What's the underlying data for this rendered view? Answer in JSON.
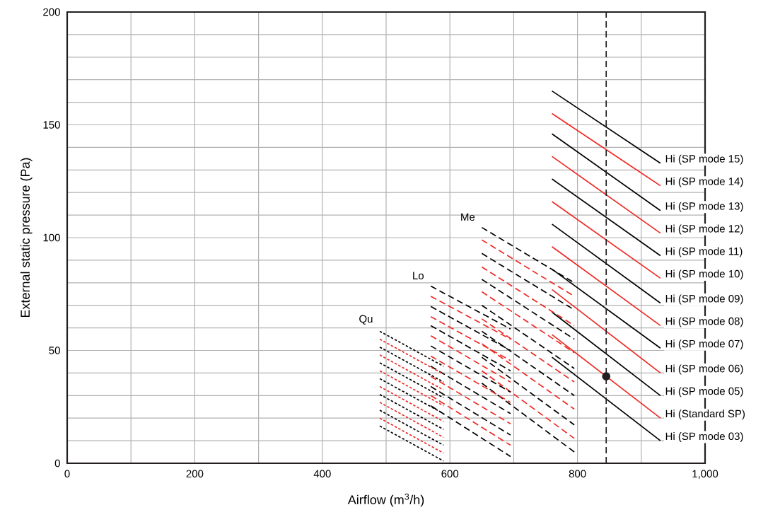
{
  "chart_data": {
    "type": "line",
    "xlabel": "Airflow (m$^{3}$/h)",
    "ylabel": "External static pressure (Pa)",
    "xlim": [
      0,
      1000
    ],
    "ylim": [
      0,
      200
    ],
    "xticks": [
      0,
      {
        "value": 100,
        "label": null
      },
      200,
      {
        "value": 300,
        "label": null
      },
      400,
      {
        "value": 500,
        "label": null
      },
      600,
      {
        "value": 700,
        "label": null
      },
      800,
      {
        "value": 900,
        "label": null
      },
      {
        "value": 1000,
        "label": "1,000"
      }
    ],
    "yticks": [
      0,
      {
        "value": 10,
        "label": null
      },
      {
        "value": 20,
        "label": null
      },
      {
        "value": 30,
        "label": null
      },
      {
        "value": 40,
        "label": null
      },
      50,
      {
        "value": 60,
        "label": null
      },
      {
        "value": 70,
        "label": null
      },
      {
        "value": 80,
        "label": null
      },
      {
        "value": 90,
        "label": null
      },
      100,
      {
        "value": 110,
        "label": null
      },
      {
        "value": 120,
        "label": null
      },
      {
        "value": 130,
        "label": null
      },
      {
        "value": 140,
        "label": null
      },
      150,
      {
        "value": 160,
        "label": null
      },
      {
        "value": 170,
        "label": null
      },
      {
        "value": 180,
        "label": null
      },
      {
        "value": 190,
        "label": null
      },
      200
    ],
    "grid": true,
    "annotations": [
      "Qu",
      "Lo",
      "Me"
    ],
    "ref_lines": [
      {
        "axis": "x",
        "value": 845,
        "color": "#231f20",
        "line_style": "dashed"
      }
    ],
    "series": [
      {
        "name": "Hi (SP mode 15)",
        "color": "#000000",
        "line_style": "solid",
        "x": [
          760,
          930
        ],
        "values": [
          165,
          133
        ]
      },
      {
        "name": "Hi (SP mode 14)",
        "color": "#ee2a24",
        "line_style": "solid",
        "x": [
          760,
          930
        ],
        "values": [
          155,
          123
        ]
      },
      {
        "name": "Hi (SP mode 13)",
        "color": "#000000",
        "line_style": "solid",
        "x": [
          760,
          930
        ],
        "values": [
          146,
          112
        ]
      },
      {
        "name": "Hi (SP mode 12)",
        "color": "#ee2a24",
        "line_style": "solid",
        "x": [
          760,
          930
        ],
        "values": [
          136,
          102
        ]
      },
      {
        "name": "Hi (SP mode 11)",
        "color": "#000000",
        "line_style": "solid",
        "x": [
          760,
          930
        ],
        "values": [
          126,
          92
        ]
      },
      {
        "name": "Hi (SP mode 10)",
        "color": "#ee2a24",
        "line_style": "solid",
        "x": [
          760,
          930
        ],
        "values": [
          116,
          82
        ]
      },
      {
        "name": "Hi (SP mode 09)",
        "color": "#000000",
        "line_style": "solid",
        "x": [
          760,
          930
        ],
        "values": [
          106,
          71
        ]
      },
      {
        "name": "Hi (SP mode 08)",
        "color": "#ee2a24",
        "line_style": "solid",
        "x": [
          760,
          930
        ],
        "values": [
          96,
          61
        ]
      },
      {
        "name": "Hi (SP mode 07)",
        "color": "#000000",
        "line_style": "solid",
        "x": [
          760,
          930
        ],
        "values": [
          86,
          51
        ]
      },
      {
        "name": "Hi (SP mode 06)",
        "color": "#ee2a24",
        "line_style": "solid",
        "x": [
          760,
          930
        ],
        "values": [
          77,
          40
        ]
      },
      {
        "name": "Hi (SP mode 05)",
        "color": "#000000",
        "line_style": "solid",
        "x": [
          760,
          930
        ],
        "values": [
          67,
          30
        ]
      },
      {
        "name": "Hi (Standard SP)",
        "color": "#ee2a24",
        "line_style": "solid",
        "x": [
          760,
          930
        ],
        "values": [
          57,
          20
        ]
      },
      {
        "name": "Hi (SP mode 03)",
        "color": "#000000",
        "line_style": "solid",
        "x": [
          760,
          930
        ],
        "values": [
          47,
          10
        ]
      },
      {
        "color": "#000000",
        "line_style": "dashed",
        "x": [
          650,
          795
        ],
        "values": [
          104.5,
          80
        ]
      },
      {
        "color": "#ee2a24",
        "line_style": "dashed",
        "x": [
          650,
          795
        ],
        "values": [
          99,
          74
        ]
      },
      {
        "color": "#000000",
        "line_style": "dashed",
        "x": [
          650,
          795
        ],
        "values": [
          93,
          68
        ]
      },
      {
        "color": "#ee2a24",
        "line_style": "dashed",
        "x": [
          650,
          795
        ],
        "values": [
          87,
          61
        ]
      },
      {
        "color": "#000000",
        "line_style": "dashed",
        "x": [
          650,
          795
        ],
        "values": [
          81.5,
          55
        ]
      },
      {
        "color": "#ee2a24",
        "line_style": "dashed",
        "x": [
          650,
          795
        ],
        "values": [
          76,
          49
        ]
      },
      {
        "color": "#000000",
        "line_style": "dashed",
        "x": [
          650,
          795
        ],
        "values": [
          70,
          42
        ]
      },
      {
        "color": "#ee2a24",
        "line_style": "dashed",
        "x": [
          650,
          795
        ],
        "values": [
          64,
          36
        ]
      },
      {
        "color": "#000000",
        "line_style": "dashed",
        "x": [
          650,
          795
        ],
        "values": [
          58.5,
          30
        ]
      },
      {
        "color": "#ee2a24",
        "line_style": "dashed",
        "x": [
          650,
          795
        ],
        "values": [
          53,
          24
        ]
      },
      {
        "color": "#000000",
        "line_style": "dashed",
        "x": [
          650,
          795
        ],
        "values": [
          47,
          17
        ]
      },
      {
        "color": "#ee2a24",
        "line_style": "dashed",
        "x": [
          650,
          795
        ],
        "values": [
          41,
          11
        ]
      },
      {
        "color": "#000000",
        "line_style": "dashed",
        "x": [
          650,
          795
        ],
        "values": [
          35.5,
          5
        ]
      },
      {
        "color": "#000000",
        "line_style": "dashed",
        "x": [
          570,
          695
        ],
        "values": [
          78.5,
          59.5
        ]
      },
      {
        "color": "#ee2a24",
        "line_style": "dashed",
        "x": [
          570,
          695
        ],
        "values": [
          74,
          55
        ]
      },
      {
        "color": "#000000",
        "line_style": "dashed",
        "x": [
          570,
          695
        ],
        "values": [
          69.5,
          50
        ]
      },
      {
        "color": "#ee2a24",
        "line_style": "dashed",
        "x": [
          570,
          695
        ],
        "values": [
          65,
          45.5
        ]
      },
      {
        "color": "#000000",
        "line_style": "dashed",
        "x": [
          570,
          695
        ],
        "values": [
          61,
          41
        ]
      },
      {
        "color": "#ee2a24",
        "line_style": "dashed",
        "x": [
          570,
          695
        ],
        "values": [
          56.5,
          36
        ]
      },
      {
        "color": "#000000",
        "line_style": "dashed",
        "x": [
          570,
          695
        ],
        "values": [
          52,
          31.5
        ]
      },
      {
        "color": "#ee2a24",
        "line_style": "dashed",
        "x": [
          570,
          695
        ],
        "values": [
          47.5,
          27
        ]
      },
      {
        "color": "#000000",
        "line_style": "dashed",
        "x": [
          570,
          695
        ],
        "values": [
          43,
          22
        ]
      },
      {
        "color": "#ee2a24",
        "line_style": "dashed",
        "x": [
          570,
          695
        ],
        "values": [
          38.5,
          17.5
        ]
      },
      {
        "color": "#000000",
        "line_style": "dashed",
        "x": [
          570,
          695
        ],
        "values": [
          34,
          12.5
        ]
      },
      {
        "color": "#ee2a24",
        "line_style": "dashed",
        "x": [
          570,
          695
        ],
        "values": [
          30,
          8
        ]
      },
      {
        "color": "#000000",
        "line_style": "dashed",
        "x": [
          570,
          695
        ],
        "values": [
          25.5,
          3
        ]
      },
      {
        "color": "#000000",
        "line_style": "dotted",
        "x": [
          490,
          590
        ],
        "values": [
          58.5,
          43
        ]
      },
      {
        "color": "#ee2a24",
        "line_style": "dotted",
        "x": [
          490,
          590
        ],
        "values": [
          55,
          39.5
        ]
      },
      {
        "color": "#000000",
        "line_style": "dotted",
        "x": [
          490,
          590
        ],
        "values": [
          51.5,
          36
        ]
      },
      {
        "color": "#ee2a24",
        "line_style": "dotted",
        "x": [
          490,
          590
        ],
        "values": [
          48,
          32.5
        ]
      },
      {
        "color": "#000000",
        "line_style": "dotted",
        "x": [
          490,
          590
        ],
        "values": [
          44.5,
          29
        ]
      },
      {
        "color": "#ee2a24",
        "line_style": "dotted",
        "x": [
          490,
          590
        ],
        "values": [
          41,
          25.5
        ]
      },
      {
        "color": "#000000",
        "line_style": "dotted",
        "x": [
          490,
          590
        ],
        "values": [
          37.5,
          22
        ]
      },
      {
        "color": "#ee2a24",
        "line_style": "dotted",
        "x": [
          490,
          590
        ],
        "values": [
          34,
          18.5
        ]
      },
      {
        "color": "#000000",
        "line_style": "dotted",
        "x": [
          490,
          590
        ],
        "values": [
          30.5,
          15
        ]
      },
      {
        "color": "#ee2a24",
        "line_style": "dotted",
        "x": [
          490,
          590
        ],
        "values": [
          27,
          11.5
        ]
      },
      {
        "color": "#000000",
        "line_style": "dotted",
        "x": [
          490,
          590
        ],
        "values": [
          23.5,
          8
        ]
      },
      {
        "color": "#ee2a24",
        "line_style": "dotted",
        "x": [
          490,
          590
        ],
        "values": [
          20,
          4.5
        ]
      },
      {
        "color": "#000000",
        "line_style": "dotted",
        "x": [
          490,
          590
        ],
        "values": [
          16.5,
          1
        ]
      },
      {
        "type": "scatter",
        "marker": "circle",
        "color": "#231f20",
        "x": [
          845
        ],
        "values": [
          38.5
        ]
      }
    ]
  }
}
